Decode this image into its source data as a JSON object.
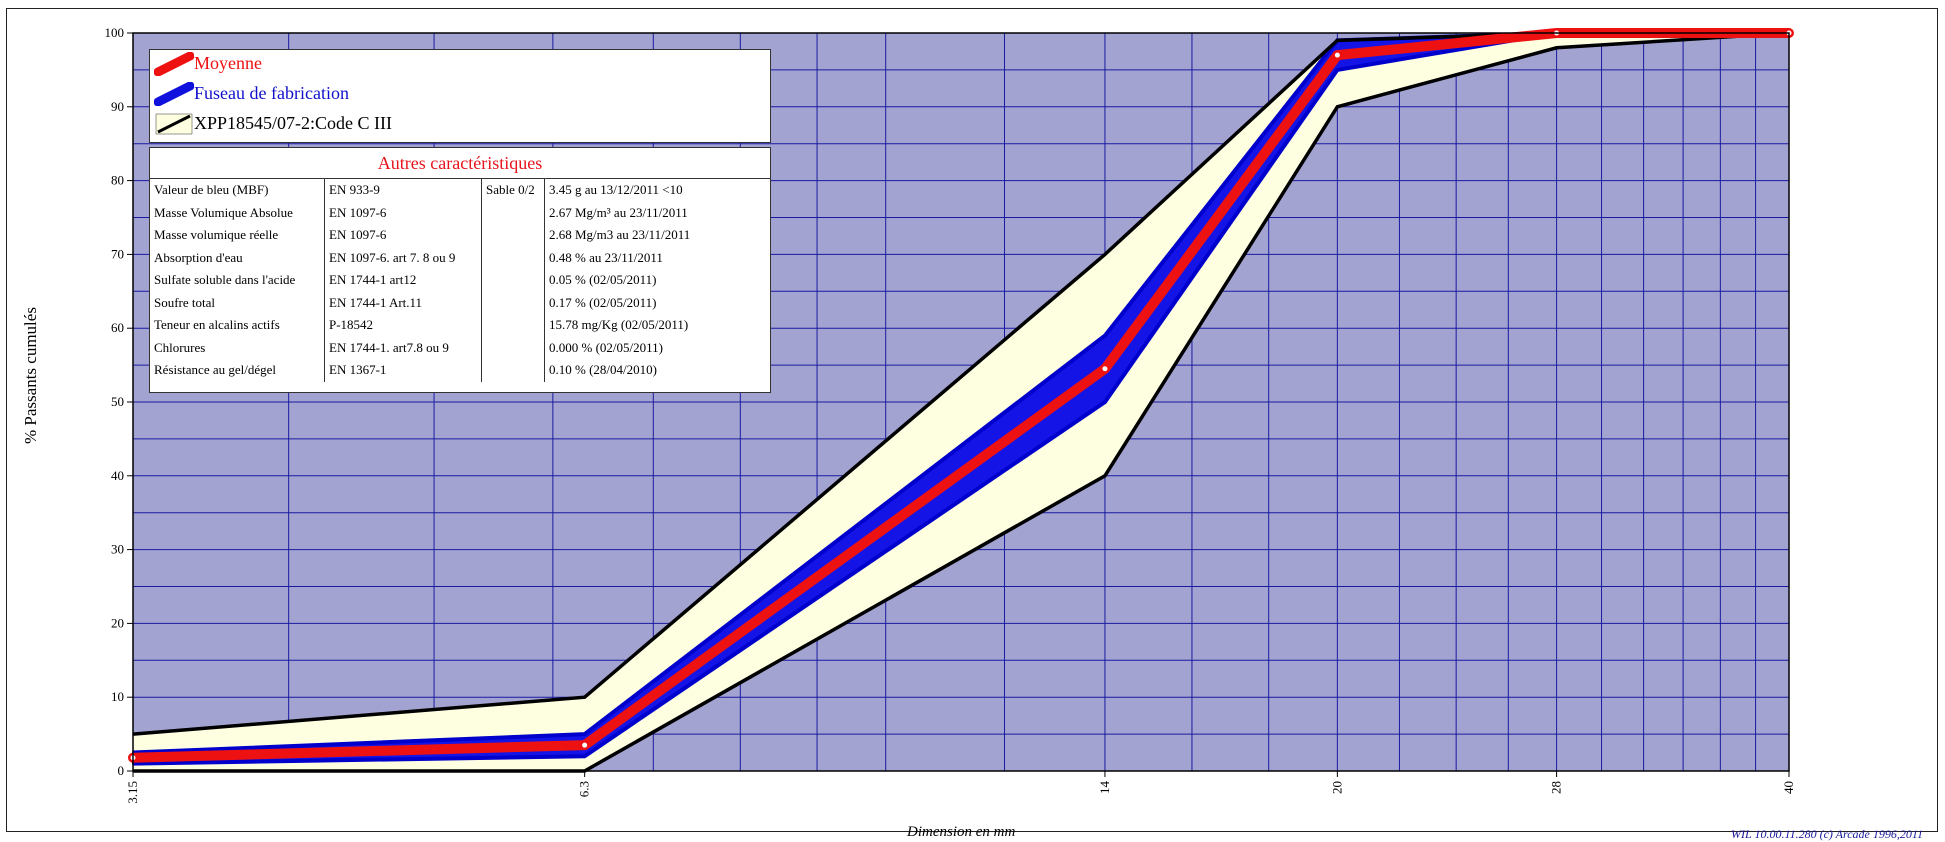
{
  "chart_data": {
    "type": "area",
    "ylabel": "% Passants cumulés",
    "xlabel": "Dimension en mm",
    "x": [
      3.15,
      6.3,
      14,
      20,
      28,
      40
    ],
    "x_tick_labels": [
      "3.15",
      "6.3",
      "14",
      "20",
      "28",
      "40"
    ],
    "y_ticks": [
      0,
      10,
      20,
      30,
      40,
      50,
      60,
      70,
      80,
      90,
      100
    ],
    "ylim": [
      0,
      100
    ],
    "grid": true,
    "legend_position": "top-left",
    "series": [
      {
        "name": "XPP18545/07-2:Code C III",
        "kind": "envelope",
        "lower": [
          0,
          0,
          40,
          90,
          98,
          100
        ],
        "upper": [
          5,
          10,
          70,
          99,
          100,
          100
        ],
        "color": "#000000",
        "fill": "#fefee0"
      },
      {
        "name": "Fuseau de fabrication",
        "kind": "envelope",
        "lower": [
          1,
          2,
          50,
          95,
          100,
          100
        ],
        "upper": [
          2.5,
          5,
          59,
          99,
          100,
          100
        ],
        "color": "#0000cc",
        "fill": "#1414e6"
      },
      {
        "name": "Moyenne",
        "kind": "line",
        "values": [
          1.8,
          3.5,
          54.5,
          97,
          100,
          100
        ],
        "color": "#ee1111"
      }
    ]
  },
  "legend": [
    {
      "label": "Moyenne",
      "color": "#ee1111",
      "text_color": "#ee1111"
    },
    {
      "label": "Fuseau de fabrication",
      "color": "#1111dd",
      "text_color": "#1111cc"
    },
    {
      "label": "XPP18545/07-2:Code C III",
      "color": "#000000",
      "text_color": "#000000"
    }
  ],
  "other": {
    "title": "Autres caractéristiques",
    "rows": [
      [
        "Valeur de bleu (MBF)",
        "EN 933-9",
        "Sable 0/2",
        "3.45 g  au 13/12/2011 <10"
      ],
      [
        "Masse Volumique Absolue",
        "EN 1097-6",
        "",
        "2.67 Mg/m³  au 23/11/2011"
      ],
      [
        "Masse volumique réelle",
        "EN 1097-6",
        "",
        "2.68 Mg/m3  au 23/11/2011"
      ],
      [
        "Absorption d'eau",
        "EN 1097-6. art 7. 8 ou 9",
        "",
        "0.48 %  au 23/11/2011"
      ],
      [
        "Sulfate soluble dans l'acide",
        "EN 1744-1 art12",
        "",
        "0.05 %  (02/05/2011)"
      ],
      [
        "Soufre total",
        "EN 1744-1 Art.11",
        "",
        "0.17 %  (02/05/2011)"
      ],
      [
        "Teneur en alcalins actifs",
        "P-18542",
        "",
        "15.78 mg/Kg  (02/05/2011)"
      ],
      [
        "Chlorures",
        "EN 1744-1. art7.8 ou 9",
        "",
        "0.000 %  (02/05/2011)"
      ],
      [
        "Résistance au gel/dégel",
        "EN 1367-1",
        "",
        "0.10 %  (28/04/2010)"
      ]
    ]
  },
  "credit": "WIL 10.00.11.280 (c) Arcade 1996,2011",
  "colors": {
    "plot_bg": "#a3a3d2",
    "grid": "#1a1aa0"
  }
}
